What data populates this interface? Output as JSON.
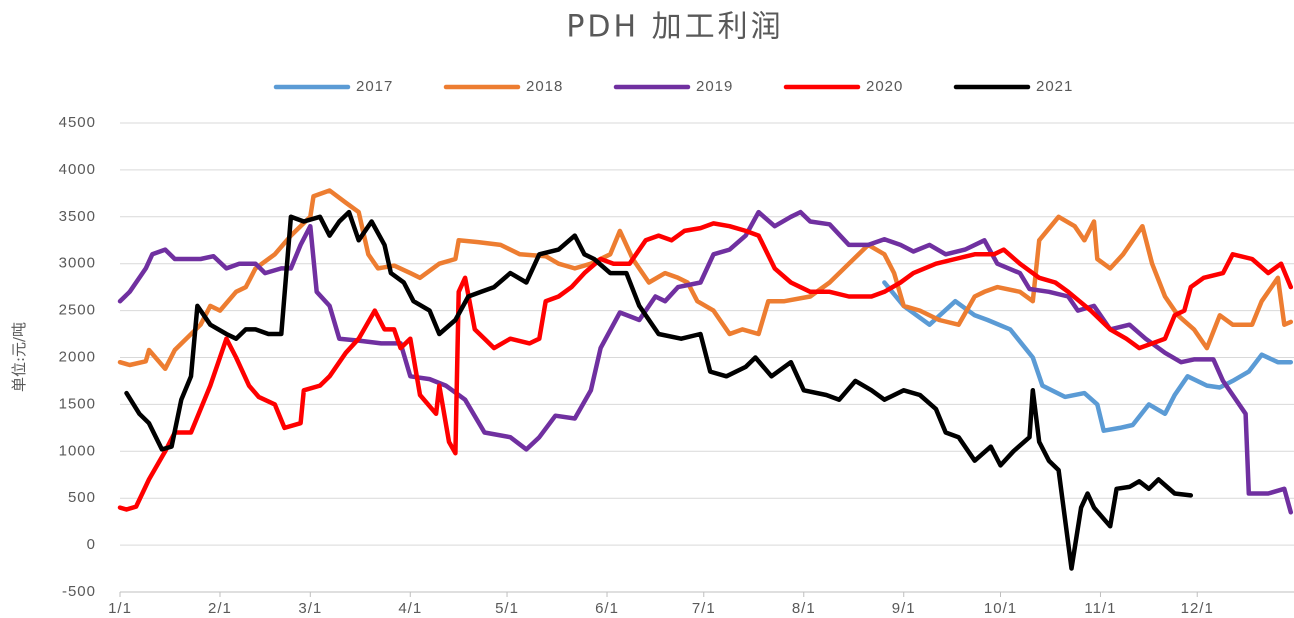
{
  "chart_data": {
    "type": "line",
    "title": "PDH  加工利润",
    "y_label": "单位:元/吨",
    "xlim": [
      0,
      364
    ],
    "ylim": [
      -500,
      4500
    ],
    "yticks": [
      -500,
      0,
      500,
      1000,
      1500,
      2000,
      2500,
      3000,
      3500,
      4000,
      4500
    ],
    "xticks": [
      {
        "value": 0,
        "label": "1/1"
      },
      {
        "value": 31,
        "label": "2/1"
      },
      {
        "value": 59,
        "label": "3/1"
      },
      {
        "value": 90,
        "label": "4/1"
      },
      {
        "value": 120,
        "label": "5/1"
      },
      {
        "value": 151,
        "label": "6/1"
      },
      {
        "value": 181,
        "label": "7/1"
      },
      {
        "value": 212,
        "label": "8/1"
      },
      {
        "value": 243,
        "label": "9/1"
      },
      {
        "value": 273,
        "label": "10/1"
      },
      {
        "value": 304,
        "label": "11/1"
      },
      {
        "value": 334,
        "label": "12/1"
      }
    ],
    "grid": true,
    "legend": "top",
    "series": [
      {
        "name": "2017",
        "color": "#5b9bd5",
        "x": [
          237,
          243,
          251,
          259,
          265,
          269,
          276,
          283,
          286,
          293,
          299,
          303,
          305,
          310,
          314,
          319,
          324,
          327,
          331,
          337,
          341,
          345,
          350,
          354,
          359,
          363
        ],
        "values": [
          2800,
          2550,
          2350,
          2600,
          2450,
          2400,
          2300,
          2000,
          1700,
          1580,
          1620,
          1500,
          1220,
          1250,
          1280,
          1500,
          1400,
          1600,
          1800,
          1700,
          1680,
          1750,
          1850,
          2030,
          1950,
          1950
        ]
      },
      {
        "name": "2018",
        "color": "#ed7d31",
        "x": [
          0,
          3,
          8,
          9,
          14,
          17,
          25,
          28,
          31,
          36,
          39,
          42,
          48,
          53,
          59,
          60,
          65,
          70,
          74,
          77,
          80,
          85,
          90,
          93,
          99,
          104,
          105,
          111,
          118,
          124,
          132,
          136,
          141,
          146,
          152,
          155,
          159,
          164,
          169,
          173,
          176,
          179,
          184,
          189,
          193,
          198,
          201,
          206,
          214,
          220,
          226,
          232,
          237,
          240,
          243,
          248,
          254,
          260,
          265,
          268,
          272,
          279,
          283,
          285,
          291,
          296,
          299,
          302,
          303,
          307,
          311,
          317,
          320,
          324,
          328,
          333,
          337,
          341,
          345,
          351,
          354,
          359,
          361,
          363
        ],
        "values": [
          1950,
          1920,
          1960,
          2080,
          1880,
          2080,
          2350,
          2550,
          2500,
          2700,
          2750,
          2950,
          3100,
          3300,
          3500,
          3720,
          3780,
          3650,
          3550,
          3100,
          2950,
          2980,
          2900,
          2850,
          3000,
          3050,
          3250,
          3230,
          3200,
          3100,
          3080,
          3000,
          2950,
          3000,
          3100,
          3350,
          3050,
          2800,
          2900,
          2850,
          2800,
          2600,
          2500,
          2250,
          2300,
          2250,
          2600,
          2600,
          2650,
          2800,
          3000,
          3200,
          3100,
          2900,
          2550,
          2500,
          2400,
          2350,
          2650,
          2700,
          2750,
          2700,
          2600,
          3250,
          3500,
          3400,
          3250,
          3450,
          3050,
          2950,
          3100,
          3400,
          3000,
          2650,
          2450,
          2300,
          2100,
          2450,
          2350,
          2350,
          2600,
          2850,
          2350,
          2380
        ]
      },
      {
        "name": "2019",
        "color": "#7030a0",
        "x": [
          0,
          3,
          8,
          10,
          14,
          17,
          20,
          25,
          29,
          33,
          37,
          42,
          45,
          50,
          53,
          56,
          59,
          61,
          65,
          68,
          74,
          81,
          87,
          90,
          96,
          101,
          107,
          113,
          121,
          126,
          130,
          135,
          141,
          146,
          149,
          155,
          161,
          166,
          169,
          173,
          180,
          184,
          189,
          194,
          198,
          203,
          208,
          211,
          214,
          220,
          226,
          232,
          237,
          242,
          246,
          251,
          256,
          262,
          268,
          272,
          279,
          282,
          288,
          294,
          297,
          302,
          307,
          313,
          318,
          324,
          329,
          333,
          339,
          342,
          345,
          349,
          350,
          356,
          361,
          363
        ],
        "values": [
          2600,
          2700,
          2950,
          3100,
          3150,
          3050,
          3050,
          3050,
          3080,
          2950,
          3000,
          3000,
          2900,
          2950,
          2950,
          3200,
          3400,
          2700,
          2550,
          2200,
          2180,
          2150,
          2150,
          1800,
          1770,
          1700,
          1550,
          1200,
          1150,
          1020,
          1150,
          1380,
          1350,
          1650,
          2100,
          2480,
          2400,
          2650,
          2600,
          2750,
          2800,
          3100,
          3150,
          3300,
          3550,
          3400,
          3500,
          3550,
          3450,
          3420,
          3200,
          3200,
          3260,
          3200,
          3130,
          3200,
          3100,
          3150,
          3250,
          3000,
          2900,
          2730,
          2700,
          2650,
          2500,
          2550,
          2300,
          2350,
          2200,
          2050,
          1950,
          1980,
          1980,
          1750,
          1600,
          1400,
          550,
          550,
          600,
          350
        ]
      },
      {
        "name": "2020",
        "color": "#ff0000",
        "x": [
          0,
          2,
          5,
          9,
          14,
          17,
          22,
          28,
          33,
          36,
          40,
          43,
          48,
          51,
          56,
          57,
          62,
          65,
          70,
          74,
          79,
          82,
          85,
          87,
          90,
          93,
          98,
          99,
          102,
          104,
          105,
          107,
          110,
          113,
          116,
          121,
          127,
          130,
          132,
          136,
          140,
          144,
          149,
          153,
          158,
          163,
          167,
          171,
          175,
          180,
          184,
          189,
          194,
          198,
          203,
          208,
          214,
          220,
          226,
          233,
          237,
          242,
          246,
          253,
          259,
          265,
          271,
          274,
          279,
          285,
          290,
          294,
          301,
          307,
          312,
          316,
          324,
          327,
          330,
          332,
          336,
          342,
          345,
          351,
          356,
          360,
          363
        ],
        "values": [
          400,
          380,
          410,
          700,
          1000,
          1200,
          1200,
          1700,
          2200,
          2000,
          1700,
          1580,
          1500,
          1250,
          1300,
          1650,
          1700,
          1800,
          2050,
          2200,
          2500,
          2300,
          2300,
          2100,
          2200,
          1600,
          1400,
          1700,
          1100,
          980,
          2700,
          2850,
          2300,
          2200,
          2100,
          2200,
          2150,
          2200,
          2600,
          2650,
          2750,
          2900,
          3050,
          3000,
          3000,
          3250,
          3300,
          3250,
          3350,
          3380,
          3430,
          3400,
          3350,
          3300,
          2950,
          2800,
          2700,
          2700,
          2650,
          2650,
          2700,
          2800,
          2900,
          3000,
          3050,
          3100,
          3100,
          3150,
          3000,
          2850,
          2800,
          2700,
          2500,
          2300,
          2200,
          2100,
          2200,
          2450,
          2500,
          2750,
          2850,
          2900,
          3100,
          3050,
          2900,
          3000,
          2750
        ]
      },
      {
        "name": "2021",
        "color": "#000000",
        "x": [
          2,
          6,
          9,
          13,
          16,
          19,
          22,
          24,
          28,
          33,
          36,
          39,
          42,
          46,
          50,
          53,
          57,
          62,
          65,
          68,
          71,
          74,
          78,
          82,
          84,
          88,
          91,
          96,
          99,
          104,
          108,
          112,
          116,
          121,
          126,
          130,
          136,
          141,
          144,
          147,
          152,
          157,
          161,
          167,
          174,
          180,
          183,
          188,
          194,
          197,
          202,
          208,
          212,
          219,
          223,
          228,
          233,
          237,
          243,
          248,
          253,
          256,
          260,
          265,
          270,
          273,
          277,
          282,
          283,
          285,
          288,
          291,
          295,
          298,
          300,
          302,
          307,
          309,
          313,
          316,
          319,
          322,
          327,
          332
        ],
        "values": [
          1620,
          1400,
          1300,
          1020,
          1050,
          1550,
          1800,
          2550,
          2350,
          2250,
          2200,
          2300,
          2300,
          2250,
          2250,
          3500,
          3450,
          3500,
          3300,
          3450,
          3550,
          3250,
          3450,
          3200,
          2900,
          2800,
          2600,
          2500,
          2250,
          2400,
          2650,
          2700,
          2750,
          2900,
          2800,
          3100,
          3150,
          3300,
          3100,
          3050,
          2900,
          2900,
          2550,
          2250,
          2200,
          2250,
          1850,
          1800,
          1900,
          2000,
          1800,
          1950,
          1650,
          1600,
          1550,
          1750,
          1650,
          1550,
          1650,
          1600,
          1450,
          1200,
          1150,
          900,
          1050,
          850,
          1000,
          1150,
          1650,
          1100,
          900,
          800,
          -250,
          400,
          550,
          400,
          200,
          600,
          620,
          680,
          600,
          700,
          550,
          530
        ]
      }
    ]
  }
}
